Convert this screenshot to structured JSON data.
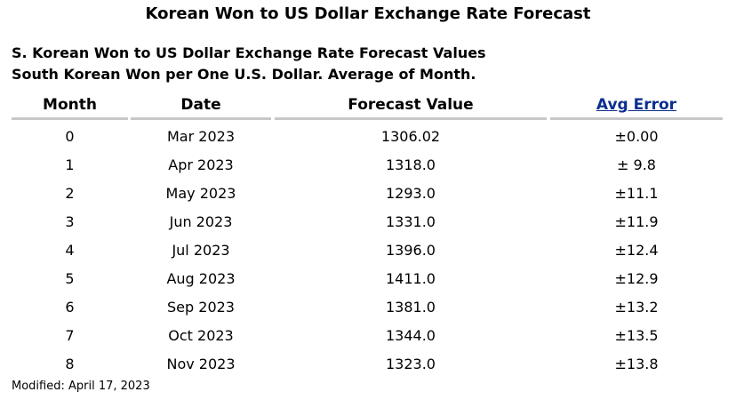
{
  "title": "Korean Won to US Dollar Exchange Rate Forecast",
  "subtitle_1": "S. Korean Won to US Dollar Exchange Rate Forecast Values",
  "subtitle_2": "South Korean Won per One U.S. Dollar.  Average of Month.",
  "table": {
    "headers": [
      "Month",
      "Date",
      "Forecast Value",
      "Avg Error"
    ],
    "rows": [
      [
        "0",
        "Mar 2023",
        "1306.02",
        "±0.00"
      ],
      [
        "1",
        "Apr 2023",
        "1318.0",
        "± 9.8"
      ],
      [
        "2",
        "May 2023",
        "1293.0",
        "±11.1"
      ],
      [
        "3",
        "Jun 2023",
        "1331.0",
        "±11.9"
      ],
      [
        "4",
        "Jul 2023",
        "1396.0",
        "±12.4"
      ],
      [
        "5",
        "Aug 2023",
        "1411.0",
        "±12.9"
      ],
      [
        "6",
        "Sep 2023",
        "1381.0",
        "±13.2"
      ],
      [
        "7",
        "Oct 2023",
        "1344.0",
        "±13.5"
      ],
      [
        "8",
        "Nov 2023",
        "1323.0",
        "±13.8"
      ]
    ]
  },
  "footer": "Modified: April 17, 2023",
  "colors": {
    "link": "#0b2f8f",
    "header_rule": "#c8c8c8"
  }
}
